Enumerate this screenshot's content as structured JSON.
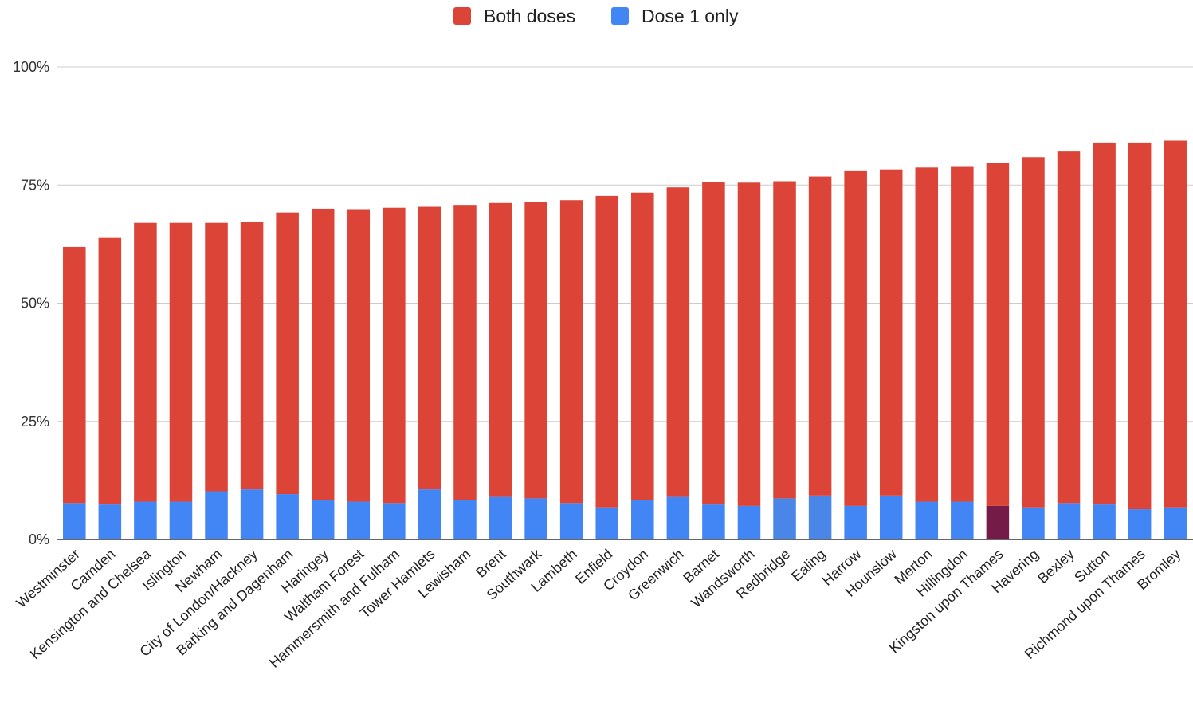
{
  "chart_data": {
    "type": "bar",
    "stacked": true,
    "y_format": "percent",
    "ylim": [
      0,
      100
    ],
    "yticks": [
      0,
      25,
      50,
      75,
      100
    ],
    "grid": true,
    "legend_position": "top",
    "title": "",
    "xlabel": "",
    "ylabel": "",
    "categories": [
      "Westminster",
      "Camden",
      "Kensington and Chelsea",
      "Islington",
      "Newham",
      "City of London/Hackney",
      "Barking and Dagenham",
      "Haringey",
      "Waltham Forest",
      "Hammersmith and Fulham",
      "Tower Hamlets",
      "Lewisham",
      "Brent",
      "Southwark",
      "Lambeth",
      "Enfield",
      "Croydon",
      "Greenwich",
      "Barnet",
      "Wandsworth",
      "Redbridge",
      "Ealing",
      "Harrow",
      "Hounslow",
      "Merton",
      "Hillingdon",
      "Kingston upon Thames",
      "Havering",
      "Bexley",
      "Sutton",
      "Richmond upon Thames",
      "Bromley"
    ],
    "series": [
      {
        "name": "Dose 1 only",
        "color": "#4285f4",
        "values": [
          7.7,
          7.4,
          8.0,
          8.0,
          10.2,
          10.6,
          9.6,
          8.4,
          8.0,
          7.7,
          10.6,
          8.4,
          9.0,
          8.7,
          7.7,
          6.8,
          8.4,
          9.0,
          7.4,
          7.1,
          8.7,
          9.3,
          7.1,
          9.3,
          8.0,
          8.0,
          7.1,
          6.8,
          7.7,
          7.4,
          6.4,
          6.8
        ],
        "point_colors": {
          "20": "#4a86e8",
          "21": "#4a86e8",
          "26": "#741b47"
        }
      },
      {
        "name": "Both doses",
        "color": "#db4437",
        "values": [
          54.2,
          56.4,
          59.0,
          59.0,
          56.8,
          56.6,
          59.6,
          61.6,
          61.9,
          62.5,
          59.8,
          62.4,
          62.2,
          62.8,
          64.1,
          65.9,
          65.0,
          65.5,
          68.2,
          68.4,
          67.1,
          67.5,
          71.0,
          69.0,
          70.7,
          71.0,
          72.5,
          74.1,
          74.4,
          76.6,
          77.6,
          77.6
        ]
      }
    ],
    "legend": [
      {
        "label": "Both doses",
        "color": "#db4437"
      },
      {
        "label": "Dose 1 only",
        "color": "#4285f4"
      }
    ]
  }
}
